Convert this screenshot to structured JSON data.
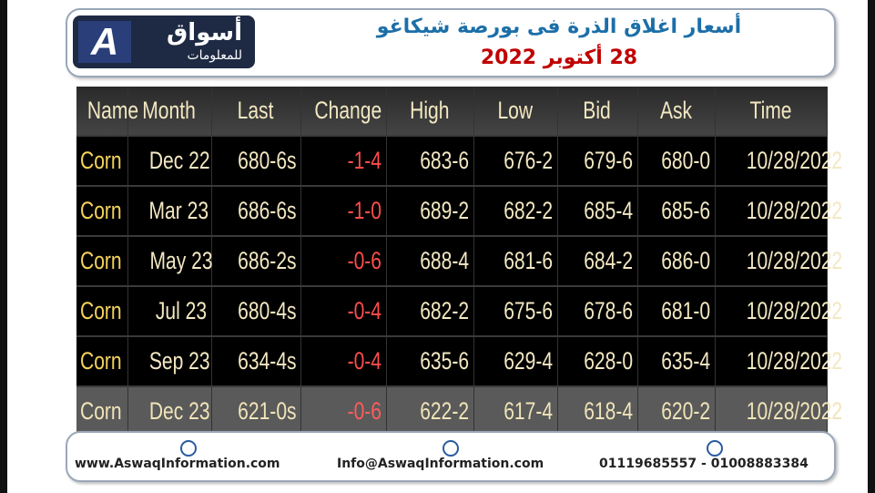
{
  "header": {
    "logo": {
      "name": "أسواق",
      "tagline": "للمعلومات"
    },
    "title": "أسعار اغلاق الذرة فى بورصة شيكاغو",
    "date": "28 أكتوبر 2022"
  },
  "table": {
    "columns": [
      "Name",
      "Month",
      "Last",
      "Change",
      "High",
      "Low",
      "Bid",
      "Ask",
      "Time"
    ],
    "rows": [
      [
        "Corn",
        "Dec 22",
        "680-6s",
        "-1-4",
        "683-6",
        "676-2",
        "679-6",
        "680-0",
        "10/28/2022"
      ],
      [
        "Corn",
        "Mar 23",
        "686-6s",
        "-1-0",
        "689-2",
        "682-2",
        "685-4",
        "685-6",
        "10/28/2022"
      ],
      [
        "Corn",
        "May 23",
        "686-2s",
        "-0-6",
        "688-4",
        "681-6",
        "684-2",
        "686-0",
        "10/28/2022"
      ],
      [
        "Corn",
        "Jul 23",
        "680-4s",
        "-0-4",
        "682-2",
        "675-6",
        "678-6",
        "681-0",
        "10/28/2022"
      ],
      [
        "Corn",
        "Sep 23",
        "634-4s",
        "-0-4",
        "635-6",
        "629-4",
        "628-0",
        "635-4",
        "10/28/2022"
      ],
      [
        "Corn",
        "Dec 23",
        "621-0s",
        "-0-6",
        "622-2",
        "617-4",
        "618-4",
        "620-2",
        "10/28/2022"
      ]
    ]
  },
  "footer": {
    "website": "www.AswaqInformation.com",
    "email": "Info@AswaqInformation.com",
    "phone": "01119685557 - 01008883384"
  }
}
